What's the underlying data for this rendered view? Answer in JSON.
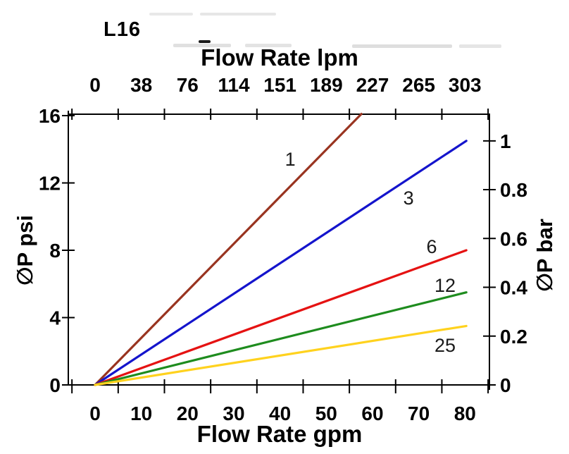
{
  "chart_data": {
    "type": "line",
    "title": "L16",
    "grid": false,
    "legend": "inline-curve-labels",
    "top_axis": {
      "label": "Flow Rate lpm",
      "tick_labels": [
        "0",
        "38",
        "76",
        "114",
        "151",
        "189",
        "227",
        "265",
        "303"
      ],
      "label_positions_gpm": [
        0,
        10,
        20,
        30,
        40,
        50,
        60,
        70,
        80
      ]
    },
    "bottom_axis": {
      "label": "Flow Rate gpm",
      "tick_labels": [
        "0",
        "10",
        "20",
        "30",
        "40",
        "50",
        "60",
        "70",
        "80"
      ],
      "label_positions_gpm": [
        0,
        10,
        20,
        30,
        40,
        50,
        60,
        70,
        80
      ],
      "tick_mark_positions_gpm": [
        -5,
        5,
        15,
        25,
        35,
        45,
        55,
        65,
        75,
        85
      ],
      "range_gpm": [
        -5.8,
        85.3
      ]
    },
    "left_axis": {
      "label": "∅P psi",
      "tick_values_psi": [
        0,
        4,
        8,
        12,
        16
      ],
      "range_psi": [
        0,
        16.1
      ]
    },
    "right_axis": {
      "label": "∅P bar",
      "tick_values_bar": [
        0,
        0.2,
        0.4,
        0.6,
        0.8,
        1
      ],
      "psi_per_bar": 14.5
    },
    "series": [
      {
        "name": "1",
        "color": "#993420",
        "points_gpm_psi": [
          [
            0,
            0
          ],
          [
            57.6,
            16.1
          ]
        ],
        "label_pos_gpm_psi": [
          42.2,
          13.4
        ]
      },
      {
        "name": "3",
        "color": "#1414CC",
        "points_gpm_psi": [
          [
            0,
            0
          ],
          [
            80.3,
            14.5
          ]
        ],
        "label_pos_gpm_psi": [
          67.8,
          11.1
        ]
      },
      {
        "name": "6",
        "color": "#E51212",
        "points_gpm_psi": [
          [
            0,
            0
          ],
          [
            80.3,
            8.0
          ]
        ],
        "label_pos_gpm_psi": [
          72.8,
          8.2
        ]
      },
      {
        "name": "12",
        "color": "#1E8C1E",
        "points_gpm_psi": [
          [
            0,
            0
          ],
          [
            80.3,
            5.5
          ]
        ],
        "label_pos_gpm_psi": [
          75.7,
          5.9
        ]
      },
      {
        "name": "25",
        "color": "#FFD21E",
        "points_gpm_psi": [
          [
            0,
            0
          ],
          [
            80.3,
            3.5
          ]
        ],
        "label_pos_gpm_psi": [
          75.7,
          2.35
        ]
      }
    ]
  }
}
